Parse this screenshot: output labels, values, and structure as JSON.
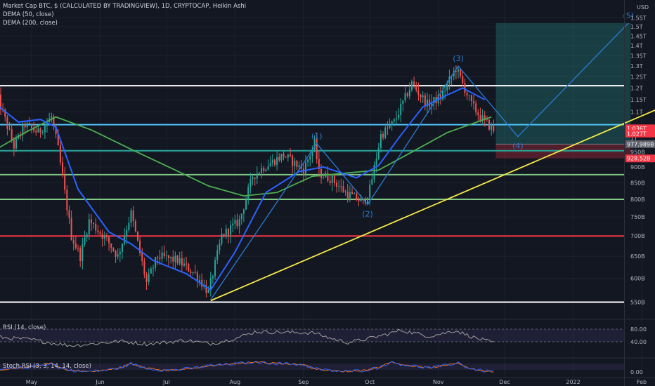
{
  "legend": {
    "title": "Market Cap BTC, $ (CALCULATED BY TRADINGVIEW), 1D, CRYPTOCAP, Heikin Ashi",
    "dema50": "DEMA (50, close)",
    "dema200": "DEMA (200, close)"
  },
  "panes": {
    "rsi_label": "RSI (14, close)",
    "stoch_label": "Stoch RSI (3, 3, 14, 14, close)",
    "rsi_ticks": [
      "80.00",
      "40.00"
    ],
    "stoch_ticks": [
      "0.00"
    ]
  },
  "colors": {
    "background": "#131722",
    "up": "#26a69a",
    "down": "#ef5350",
    "dema50": "#2962ff",
    "dema200": "#4caf50",
    "wave": "#2a7bd4",
    "trendline": "#f5e94a",
    "white_level": "#ffffff",
    "blue_level": "#4fc3f7",
    "teal_level": "#26a69a",
    "green_level": "#81c784",
    "red_level": "#f23645",
    "rsi_line": "#9e9e9e",
    "stoch_k": "#2962ff",
    "stoch_d": "#ff6d00"
  },
  "chart_data": {
    "type": "candlestick",
    "yscale": "log",
    "ylim": [
      530,
      1620
    ],
    "yunit": "billions USD",
    "yaxis_unit_label": "USD",
    "y_ticks": [
      {
        "v": 1550,
        "label": "1.55T"
      },
      {
        "v": 1500,
        "label": "1.5T"
      },
      {
        "v": 1450,
        "label": "1.45T"
      },
      {
        "v": 1400,
        "label": "1.4T"
      },
      {
        "v": 1350,
        "label": "1.35T"
      },
      {
        "v": 1300,
        "label": "1.3T"
      },
      {
        "v": 1250,
        "label": "1.25T"
      },
      {
        "v": 1200,
        "label": "1.2T"
      },
      {
        "v": 1150,
        "label": "1.15T"
      },
      {
        "v": 1100,
        "label": "1.1T"
      },
      {
        "v": 1000,
        "label": "1T"
      },
      {
        "v": 950,
        "label": "950B"
      },
      {
        "v": 900,
        "label": "900B"
      },
      {
        "v": 850,
        "label": "850B"
      },
      {
        "v": 800,
        "label": "800B"
      },
      {
        "v": 750,
        "label": "750B"
      },
      {
        "v": 700,
        "label": "700B"
      },
      {
        "v": 650,
        "label": "650B"
      },
      {
        "v": 600,
        "label": "600B"
      },
      {
        "v": 550,
        "label": "550B"
      }
    ],
    "x_ticks": [
      {
        "date": "2021-05-01",
        "label": "May"
      },
      {
        "date": "2021-06-01",
        "label": "Jun"
      },
      {
        "date": "2021-07-01",
        "label": "Jul"
      },
      {
        "date": "2021-08-01",
        "label": "Aug"
      },
      {
        "date": "2021-09-01",
        "label": "Sep"
      },
      {
        "date": "2021-10-01",
        "label": "Oct"
      },
      {
        "date": "2021-11-01",
        "label": "Nov"
      },
      {
        "date": "2021-12-01",
        "label": "Dec"
      },
      {
        "date": "2022-01-01",
        "label": "2022"
      },
      {
        "date": "2022-02-01",
        "label": "Feb"
      }
    ],
    "price_path": [
      {
        "date": "2021-04-15",
        "v": 1180
      },
      {
        "date": "2021-04-23",
        "v": 970
      },
      {
        "date": "2021-04-28",
        "v": 1050
      },
      {
        "date": "2021-05-04",
        "v": 1020
      },
      {
        "date": "2021-05-10",
        "v": 1080
      },
      {
        "date": "2021-05-13",
        "v": 960
      },
      {
        "date": "2021-05-19",
        "v": 700
      },
      {
        "date": "2021-05-23",
        "v": 650
      },
      {
        "date": "2021-05-27",
        "v": 740
      },
      {
        "date": "2021-06-04",
        "v": 690
      },
      {
        "date": "2021-06-09",
        "v": 650
      },
      {
        "date": "2021-06-15",
        "v": 760
      },
      {
        "date": "2021-06-22",
        "v": 590
      },
      {
        "date": "2021-06-27",
        "v": 650
      },
      {
        "date": "2021-07-06",
        "v": 640
      },
      {
        "date": "2021-07-14",
        "v": 610
      },
      {
        "date": "2021-07-20",
        "v": 570
      },
      {
        "date": "2021-07-26",
        "v": 700
      },
      {
        "date": "2021-08-03",
        "v": 740
      },
      {
        "date": "2021-08-09",
        "v": 870
      },
      {
        "date": "2021-08-14",
        "v": 900
      },
      {
        "date": "2021-08-23",
        "v": 940
      },
      {
        "date": "2021-09-01",
        "v": 890
      },
      {
        "date": "2021-09-06",
        "v": 980
      },
      {
        "date": "2021-09-08",
        "v": 880
      },
      {
        "date": "2021-09-14",
        "v": 860
      },
      {
        "date": "2021-09-20",
        "v": 820
      },
      {
        "date": "2021-09-28",
        "v": 790
      },
      {
        "date": "2021-10-01",
        "v": 830
      },
      {
        "date": "2021-10-06",
        "v": 1010
      },
      {
        "date": "2021-10-12",
        "v": 1060
      },
      {
        "date": "2021-10-20",
        "v": 1220
      },
      {
        "date": "2021-10-27",
        "v": 1130
      },
      {
        "date": "2021-11-02",
        "v": 1160
      },
      {
        "date": "2021-11-09",
        "v": 1290
      },
      {
        "date": "2021-11-16",
        "v": 1130
      },
      {
        "date": "2021-11-20",
        "v": 1080
      },
      {
        "date": "2021-11-26",
        "v": 1030
      }
    ],
    "dema50_path": [
      {
        "date": "2021-04-15",
        "v": 1130
      },
      {
        "date": "2021-04-25",
        "v": 1060
      },
      {
        "date": "2021-05-05",
        "v": 1070
      },
      {
        "date": "2021-05-12",
        "v": 1040
      },
      {
        "date": "2021-05-22",
        "v": 830
      },
      {
        "date": "2021-06-05",
        "v": 710
      },
      {
        "date": "2021-06-15",
        "v": 680
      },
      {
        "date": "2021-06-25",
        "v": 640
      },
      {
        "date": "2021-07-10",
        "v": 610
      },
      {
        "date": "2021-07-21",
        "v": 575
      },
      {
        "date": "2021-08-01",
        "v": 660
      },
      {
        "date": "2021-08-15",
        "v": 820
      },
      {
        "date": "2021-08-30",
        "v": 885
      },
      {
        "date": "2021-09-10",
        "v": 900
      },
      {
        "date": "2021-09-25",
        "v": 865
      },
      {
        "date": "2021-10-05",
        "v": 905
      },
      {
        "date": "2021-10-15",
        "v": 1010
      },
      {
        "date": "2021-10-25",
        "v": 1120
      },
      {
        "date": "2021-11-05",
        "v": 1170
      },
      {
        "date": "2021-11-12",
        "v": 1200
      },
      {
        "date": "2021-11-22",
        "v": 1150
      }
    ],
    "dema200_path": [
      {
        "date": "2021-04-15",
        "v": 960
      },
      {
        "date": "2021-04-28",
        "v": 1020
      },
      {
        "date": "2021-05-12",
        "v": 1080
      },
      {
        "date": "2021-05-28",
        "v": 1030
      },
      {
        "date": "2021-06-15",
        "v": 960
      },
      {
        "date": "2021-07-05",
        "v": 890
      },
      {
        "date": "2021-07-20",
        "v": 840
      },
      {
        "date": "2021-08-05",
        "v": 810
      },
      {
        "date": "2021-08-20",
        "v": 820
      },
      {
        "date": "2021-09-05",
        "v": 870
      },
      {
        "date": "2021-09-20",
        "v": 880
      },
      {
        "date": "2021-10-05",
        "v": 890
      },
      {
        "date": "2021-10-20",
        "v": 950
      },
      {
        "date": "2021-11-05",
        "v": 1020
      },
      {
        "date": "2021-11-25",
        "v": 1080
      }
    ],
    "horizontal_levels": [
      {
        "v": 1210,
        "color": "#ffffff"
      },
      {
        "v": 1050,
        "color": "#4fc3f7"
      },
      {
        "v": 955,
        "color": "#26a69a"
      },
      {
        "v": 875,
        "color": "#81c784"
      },
      {
        "v": 800,
        "color": "#81c784"
      },
      {
        "v": 700,
        "color": "#f23645"
      },
      {
        "v": 550,
        "color": "#ffffff"
      }
    ],
    "trendline": [
      {
        "date": "2021-07-21",
        "v": 553
      },
      {
        "date": "2022-02-28",
        "v": 1190
      }
    ],
    "wave_path": [
      {
        "date": "2021-07-21",
        "v": 555,
        "label": ""
      },
      {
        "date": "2021-09-07",
        "v": 980,
        "label": "(1)"
      },
      {
        "date": "2021-09-30",
        "v": 785,
        "label": "(2)"
      },
      {
        "date": "2021-11-10",
        "v": 1300,
        "label": "(3)"
      },
      {
        "date": "2021-12-07",
        "v": 1005,
        "label": "(4)"
      },
      {
        "date": "2022-01-26",
        "v": 1520,
        "label": "(5)"
      }
    ],
    "position": {
      "start": "2021-11-27",
      "end": "2022-01-27",
      "entry": 977.989,
      "target": 1520,
      "stop": 928.52
    },
    "price_labels": [
      {
        "v": 1036,
        "label": "1.036T",
        "color": "#f23645"
      },
      {
        "v": 1027,
        "label": "1.027T",
        "color": "#f23645"
      },
      {
        "v": 977.989,
        "label": "977.989B",
        "color": "#5d606b"
      },
      {
        "v": 928.52,
        "label": "928.52B",
        "color": "#f23645"
      }
    ],
    "rsi_path": [
      {
        "date": "2021-04-15",
        "v": 55
      },
      {
        "date": "2021-05-01",
        "v": 47
      },
      {
        "date": "2021-05-19",
        "v": 28
      },
      {
        "date": "2021-06-10",
        "v": 42
      },
      {
        "date": "2021-06-22",
        "v": 33
      },
      {
        "date": "2021-07-10",
        "v": 45
      },
      {
        "date": "2021-07-21",
        "v": 34
      },
      {
        "date": "2021-08-10",
        "v": 72
      },
      {
        "date": "2021-09-06",
        "v": 68
      },
      {
        "date": "2021-09-21",
        "v": 38
      },
      {
        "date": "2021-10-15",
        "v": 77
      },
      {
        "date": "2021-10-28",
        "v": 58
      },
      {
        "date": "2021-11-09",
        "v": 76
      },
      {
        "date": "2021-11-26",
        "v": 37
      }
    ],
    "stoch_path": [
      {
        "date": "2021-04-15",
        "v": 20
      },
      {
        "date": "2021-05-10",
        "v": 85
      },
      {
        "date": "2021-05-25",
        "v": 5
      },
      {
        "date": "2021-06-15",
        "v": 80
      },
      {
        "date": "2021-07-01",
        "v": 15
      },
      {
        "date": "2021-07-20",
        "v": 60
      },
      {
        "date": "2021-08-10",
        "v": 95
      },
      {
        "date": "2021-09-01",
        "v": 70
      },
      {
        "date": "2021-09-20",
        "v": 5
      },
      {
        "date": "2021-10-10",
        "v": 95
      },
      {
        "date": "2021-10-28",
        "v": 40
      },
      {
        "date": "2021-11-10",
        "v": 90
      },
      {
        "date": "2021-11-26",
        "v": 5
      }
    ]
  }
}
